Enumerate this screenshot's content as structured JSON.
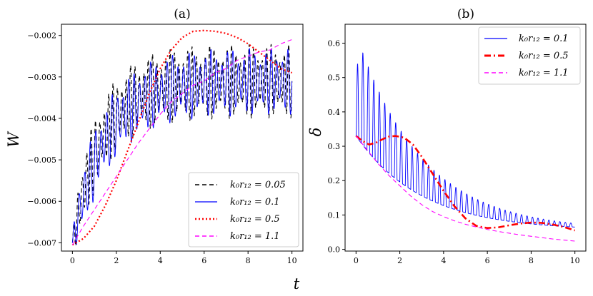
{
  "chart_data": [
    {
      "type": "line",
      "title": "(a)",
      "xlabel": "",
      "ylabel": "W",
      "xlim": [
        -0.5,
        10.5
      ],
      "ylim": [
        -0.0072,
        -0.00173
      ],
      "xticks": [
        0,
        2,
        4,
        6,
        8,
        10
      ],
      "xtick_labels": [
        "0",
        "2",
        "4",
        "6",
        "8",
        "10"
      ],
      "yticks": [
        -0.007,
        -0.006,
        -0.005,
        -0.004,
        -0.003,
        -0.002
      ],
      "ytick_labels": [
        "−0.007",
        "−0.006",
        "−0.005",
        "−0.004",
        "−0.003",
        "−0.002"
      ],
      "legend_position": "lower-right",
      "series": [
        {
          "name": "k₀r₁₂ = 0.05",
          "color": "#000000",
          "style": "dashed",
          "model": "osc",
          "osc": {
            "start": -0.007,
            "end": -0.0031,
            "tau": 1.3,
            "amp": 0.0009,
            "amp_decay": 0.0,
            "period": 0.2
          }
        },
        {
          "name": "k₀r₁₂ = 0.1",
          "color": "#0000ff",
          "style": "solid",
          "model": "osc",
          "osc": {
            "start": -0.007,
            "end": -0.0031,
            "tau": 1.5,
            "amp": 0.00085,
            "amp_decay": 0.05,
            "period": 0.25
          }
        },
        {
          "name": "k₀r₁₂ = 0.5",
          "color": "#ff0000",
          "style": "dotted",
          "x": [
            0,
            0.5,
            1,
            1.5,
            2,
            2.5,
            3,
            3.5,
            4,
            4.5,
            5,
            5.5,
            6,
            6.5,
            7,
            7.5,
            8,
            8.5,
            9,
            9.5,
            10
          ],
          "y": [
            -0.00705,
            -0.0069,
            -0.0066,
            -0.0061,
            -0.0055,
            -0.0048,
            -0.0041,
            -0.0034,
            -0.0028,
            -0.00235,
            -0.00205,
            -0.0019,
            -0.00188,
            -0.0019,
            -0.00195,
            -0.00205,
            -0.0022,
            -0.0024,
            -0.0026,
            -0.0028,
            -0.0029
          ]
        },
        {
          "name": "k₀r₁₂ = 1.1",
          "color": "#ff00ff",
          "style": "dashed",
          "x": [
            0,
            0.5,
            1,
            1.5,
            2,
            2.5,
            3,
            3.5,
            4,
            4.5,
            5,
            5.5,
            6,
            6.5,
            7,
            7.5,
            8,
            8.5,
            9,
            9.5,
            10
          ],
          "y": [
            -0.00705,
            -0.0066,
            -0.0062,
            -0.0058,
            -0.0054,
            -0.005,
            -0.0046,
            -0.00425,
            -0.0039,
            -0.0036,
            -0.0034,
            -0.0032,
            -0.0031,
            -0.0029,
            -0.0028,
            -0.0026,
            -0.0025,
            -0.0024,
            -0.00235,
            -0.0022,
            -0.0021
          ]
        }
      ]
    },
    {
      "type": "line",
      "title": "(b)",
      "xlabel": "t",
      "ylabel": "δ",
      "xlim": [
        -0.5,
        10.5
      ],
      "ylim": [
        -0.005,
        0.655
      ],
      "xticks": [
        0,
        2,
        4,
        6,
        8,
        10
      ],
      "xtick_labels": [
        "0",
        "2",
        "4",
        "6",
        "8",
        "10"
      ],
      "yticks": [
        0.0,
        0.1,
        0.2,
        0.3,
        0.4,
        0.5,
        0.6
      ],
      "ytick_labels": [
        "0.0",
        "0.1",
        "0.2",
        "0.3",
        "0.4",
        "0.5",
        "0.6"
      ],
      "legend_position": "upper-right",
      "series": [
        {
          "name": "k₀r₁₂ = 0.1",
          "color": "#0000ff",
          "style": "solid",
          "model": "decay",
          "decay": {
            "base_start": 0.33,
            "base_end": 0.055,
            "tau": 3.0,
            "amp": 0.3,
            "amp_tau": 3.0,
            "period": 0.25
          }
        },
        {
          "name": "k₀r₁₂ = 0.5",
          "color": "#ff0000",
          "style": "dashdot",
          "x": [
            0.0,
            0.3,
            0.6,
            0.9,
            1.2,
            1.5,
            1.8,
            2.2,
            2.6,
            3.0,
            3.5,
            4.0,
            4.5,
            5.0,
            5.5,
            6.0,
            6.5,
            7.0,
            7.5,
            8.0,
            8.5,
            9.0,
            9.5,
            10.0
          ],
          "y": [
            0.33,
            0.315,
            0.305,
            0.31,
            0.32,
            0.328,
            0.33,
            0.325,
            0.305,
            0.27,
            0.22,
            0.17,
            0.125,
            0.09,
            0.068,
            0.062,
            0.064,
            0.07,
            0.075,
            0.078,
            0.077,
            0.072,
            0.065,
            0.055
          ]
        },
        {
          "name": "k₀r₁₂ = 1.1",
          "color": "#ff00ff",
          "style": "dashed",
          "x": [
            0,
            0.5,
            1,
            1.5,
            2,
            2.5,
            3,
            3.5,
            4,
            4.5,
            5,
            5.5,
            6,
            6.5,
            7,
            7.5,
            8,
            8.5,
            9,
            9.5,
            10
          ],
          "y": [
            0.33,
            0.29,
            0.25,
            0.215,
            0.185,
            0.155,
            0.13,
            0.11,
            0.095,
            0.083,
            0.073,
            0.065,
            0.058,
            0.052,
            0.047,
            0.042,
            0.038,
            0.034,
            0.03,
            0.027,
            0.024
          ]
        }
      ]
    }
  ]
}
